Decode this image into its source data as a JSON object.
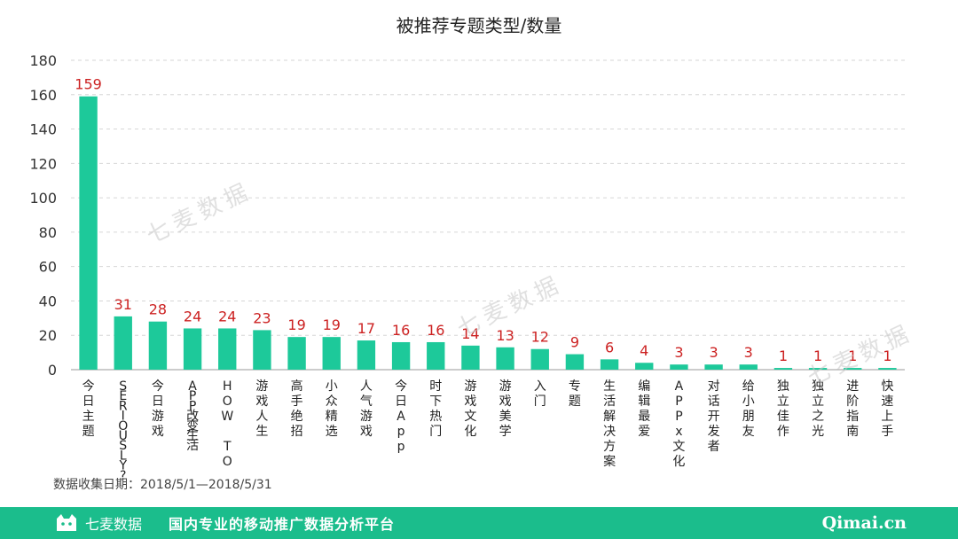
{
  "chart_data": {
    "type": "bar",
    "title": "被推荐专题类型/数量",
    "xlabel": "",
    "ylabel": "",
    "ylim": [
      0,
      180
    ],
    "yticks": [
      0,
      20,
      40,
      60,
      80,
      100,
      120,
      140,
      160,
      180
    ],
    "grid": true,
    "color": "#1dc99a",
    "label_color": "#cc2222",
    "categories": [
      "今日主题",
      "SERIOUSLY?",
      "今日游戏",
      "APP改变生活",
      "HOW TO",
      "游戏人生",
      "高手绝招",
      "小众精选",
      "人气游戏",
      "今日App",
      "时下热门",
      "游戏文化",
      "游戏美学",
      "入门",
      "专题",
      "生活解决方案",
      "编辑最爱",
      "APPx文化",
      "对话开发者",
      "给小朋友",
      "独立佳作",
      "独立之光",
      "进阶指南",
      "快速上手"
    ],
    "values": [
      159,
      31,
      28,
      24,
      24,
      23,
      19,
      19,
      17,
      16,
      16,
      14,
      13,
      12,
      9,
      6,
      4,
      3,
      3,
      3,
      1,
      1,
      1,
      1
    ]
  },
  "source_note": "数据收集日期：2018/5/1—2018/5/31",
  "watermark_text": "七麦数据",
  "footer": {
    "brand": "七麦数据",
    "slogan": "国内专业的移动推广数据分析平台",
    "site": "Qimai.cn",
    "bg_color": "#1bbd8c"
  }
}
